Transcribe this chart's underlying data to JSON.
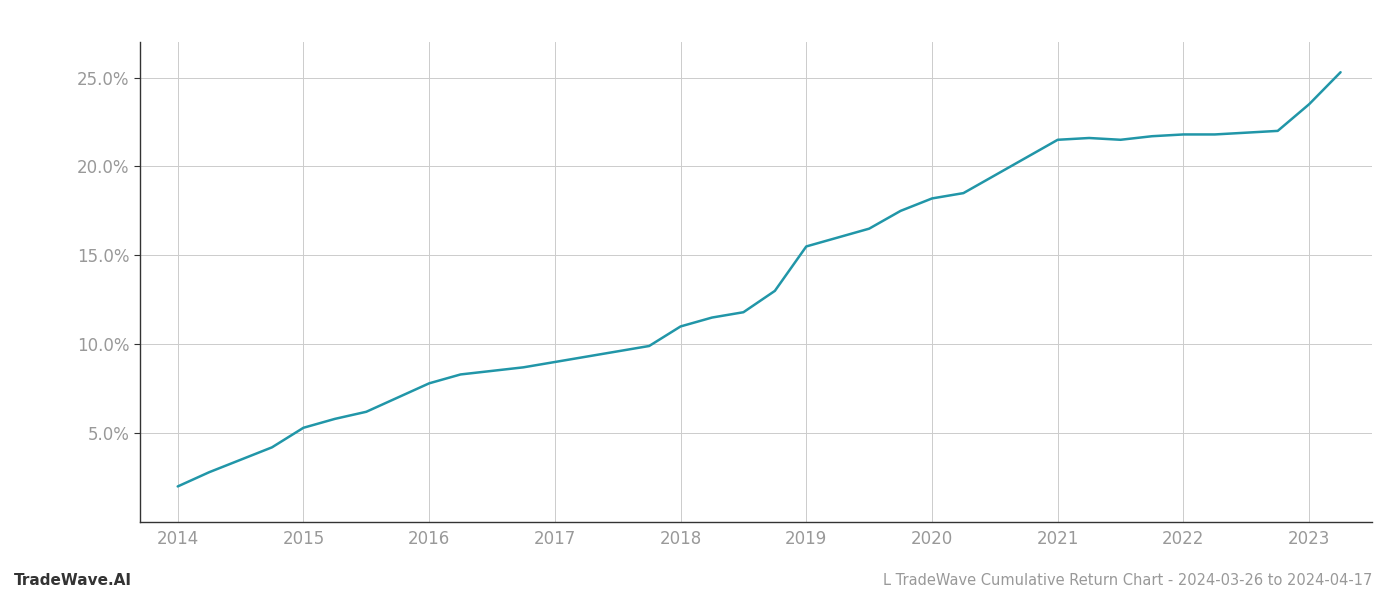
{
  "title": "L TradeWave Cumulative Return Chart - 2024-03-26 to 2024-04-17",
  "watermark": "TradeWave.AI",
  "line_color": "#2196a8",
  "background_color": "#ffffff",
  "grid_color": "#cccccc",
  "x_values": [
    2014.0,
    2014.25,
    2014.5,
    2014.75,
    2015.0,
    2015.25,
    2015.5,
    2015.75,
    2016.0,
    2016.25,
    2016.5,
    2016.75,
    2017.0,
    2017.25,
    2017.5,
    2017.75,
    2018.0,
    2018.25,
    2018.5,
    2018.75,
    2019.0,
    2019.25,
    2019.5,
    2019.75,
    2020.0,
    2020.25,
    2020.5,
    2020.75,
    2021.0,
    2021.25,
    2021.5,
    2021.75,
    2022.0,
    2022.25,
    2022.5,
    2022.75,
    2023.0,
    2023.25
  ],
  "y_values": [
    2.0,
    2.8,
    3.5,
    4.2,
    5.3,
    5.8,
    6.2,
    7.0,
    7.8,
    8.3,
    8.5,
    8.7,
    9.0,
    9.3,
    9.6,
    9.9,
    11.0,
    11.5,
    11.8,
    13.0,
    15.5,
    16.0,
    16.5,
    17.5,
    18.2,
    18.5,
    19.5,
    20.5,
    21.5,
    21.6,
    21.5,
    21.7,
    21.8,
    21.8,
    21.9,
    22.0,
    23.5,
    25.3
  ],
  "xlim": [
    2013.7,
    2023.5
  ],
  "ylim": [
    0,
    27
  ],
  "yticks": [
    5.0,
    10.0,
    15.0,
    20.0,
    25.0
  ],
  "xticks": [
    2014,
    2015,
    2016,
    2017,
    2018,
    2019,
    2020,
    2021,
    2022,
    2023
  ],
  "line_width": 1.8,
  "title_fontsize": 10.5,
  "watermark_fontsize": 11,
  "tick_fontsize": 12,
  "tick_color": "#999999"
}
